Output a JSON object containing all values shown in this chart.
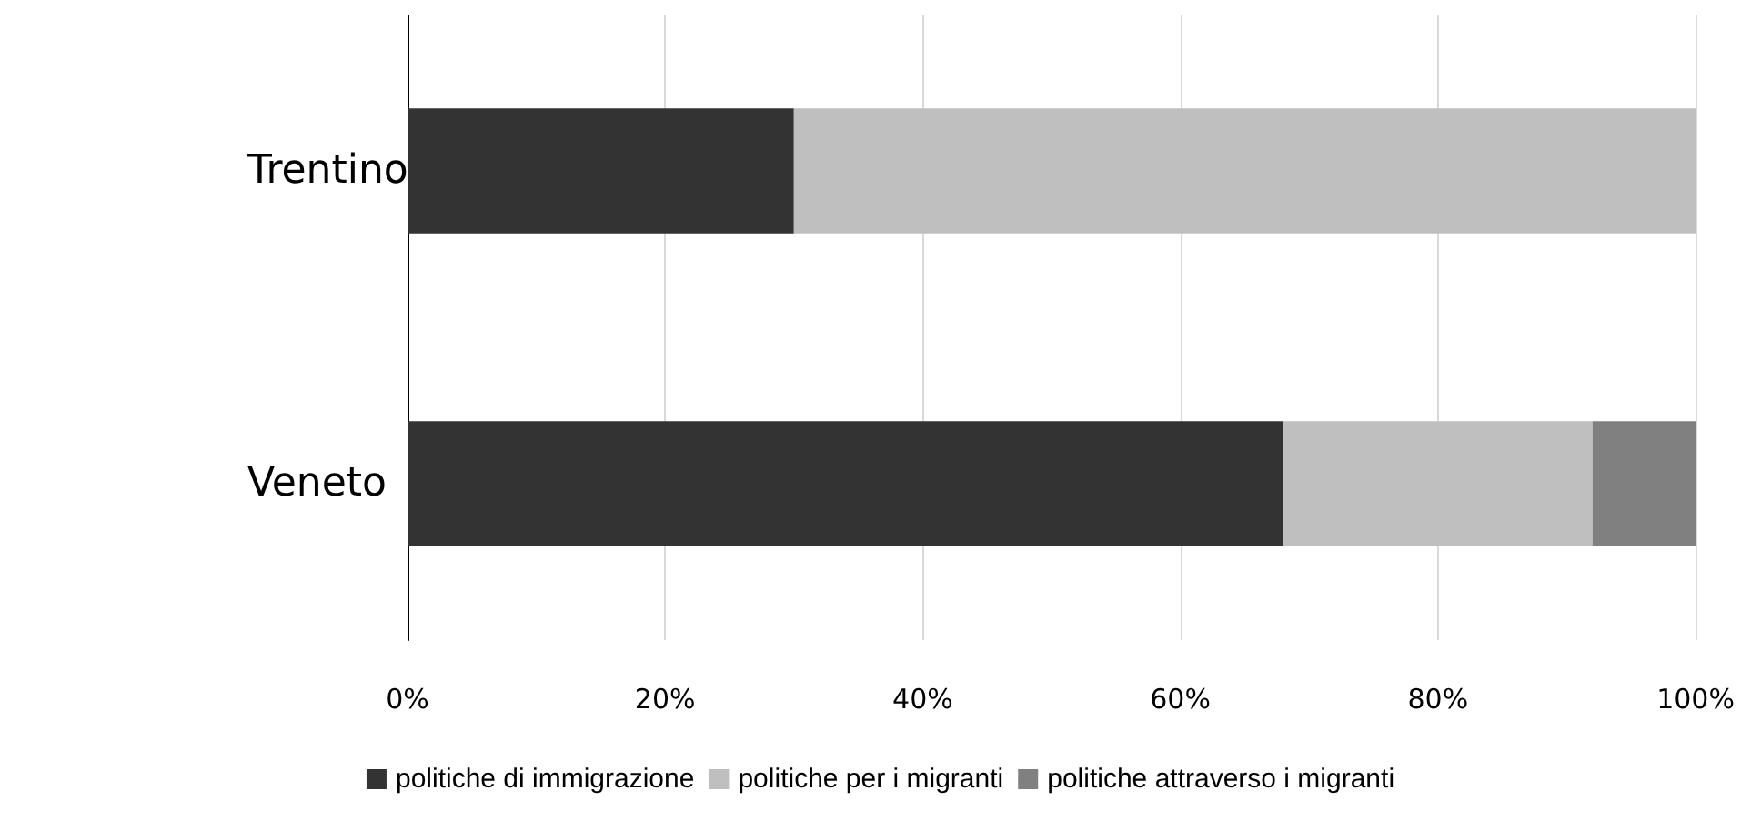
{
  "chart_data": {
    "type": "bar",
    "orientation": "horizontal",
    "stacked": true,
    "categories": [
      "Trentino",
      "Veneto"
    ],
    "series": [
      {
        "name": "politiche di immigrazione",
        "color": "#333333",
        "values": [
          30,
          68
        ]
      },
      {
        "name": "politiche per i migranti",
        "color": "#bfbfbf",
        "values": [
          70,
          24
        ]
      },
      {
        "name": "politiche attraverso i migranti",
        "color": "#808080",
        "values": [
          0,
          8
        ]
      }
    ],
    "xlim": [
      0,
      100
    ],
    "xticks": [
      {
        "value": 0,
        "label": "0%"
      },
      {
        "value": 20,
        "label": "20%"
      },
      {
        "value": 40,
        "label": "40%"
      },
      {
        "value": 60,
        "label": "60%"
      },
      {
        "value": 80,
        "label": "80%"
      },
      {
        "value": 100,
        "label": "100%"
      }
    ],
    "grid": "x",
    "legend": "bottom"
  }
}
